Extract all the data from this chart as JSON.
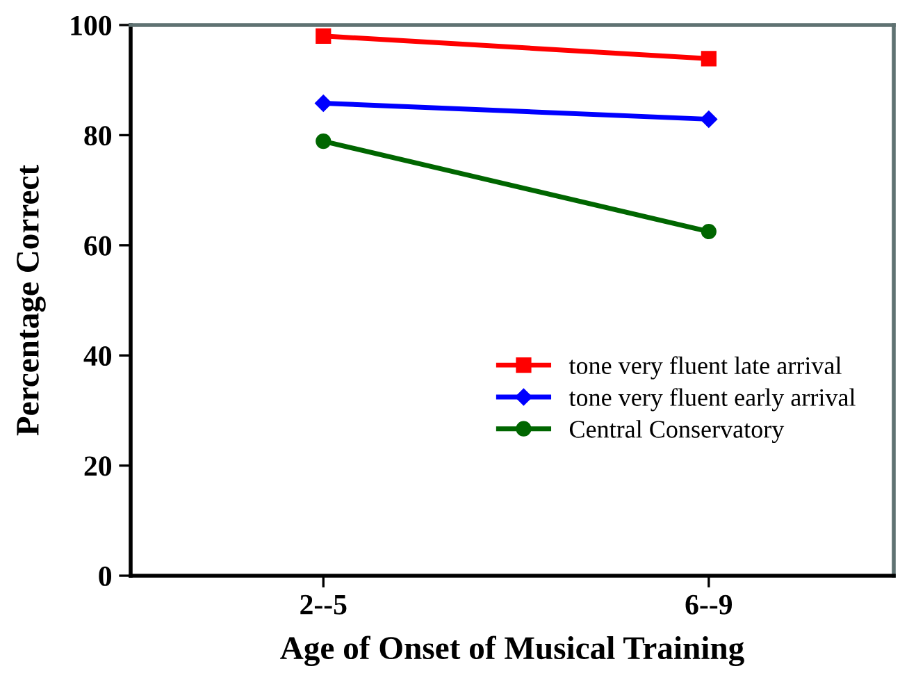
{
  "chart_data": {
    "type": "line",
    "xlabel": "Age of Onset of Musical Training",
    "ylabel": "Percentage Correct",
    "categories": [
      "2--5",
      "6--9"
    ],
    "series": [
      {
        "name": "tone very fluent late arrival",
        "color": "#ff0000",
        "marker": "square",
        "values": [
          98,
          93.9
        ]
      },
      {
        "name": "tone very fluent early arrival",
        "color": "#0000ff",
        "marker": "diamond",
        "values": [
          85.8,
          82.9
        ]
      },
      {
        "name": "Central Conservatory",
        "color": "#006600",
        "marker": "circle",
        "values": [
          78.9,
          62.5
        ]
      }
    ],
    "ylim": [
      0,
      100
    ],
    "yticks": [
      0,
      20,
      40,
      60,
      80,
      100
    ],
    "grid": false,
    "legend": "bottom right",
    "line_style": "solid"
  }
}
